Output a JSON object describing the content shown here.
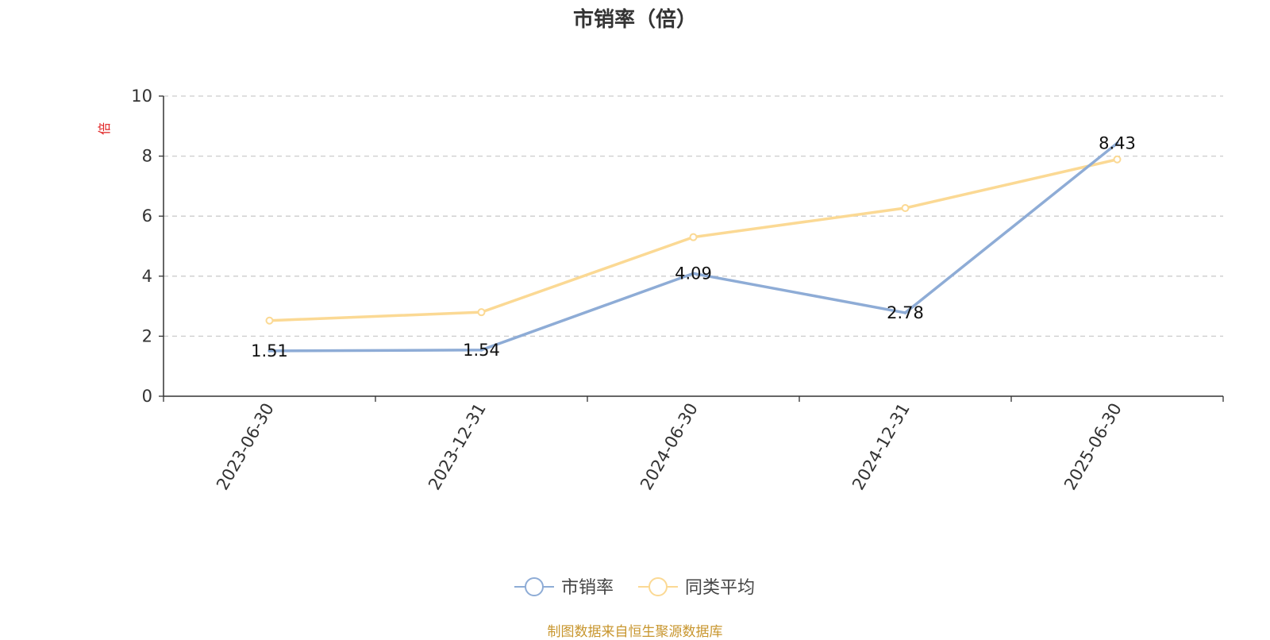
{
  "title": "市销率（倍）",
  "footer": "制图数据来自恒生聚源数据库",
  "chart_data": {
    "type": "line",
    "title": "市销率（倍）",
    "ylabel": "倍",
    "xlabel": "",
    "categories": [
      "2023-06-30",
      "2023-12-31",
      "2024-06-30",
      "2024-12-31",
      "2025-06-30"
    ],
    "ylim": [
      0,
      10
    ],
    "yticks": [
      0,
      2,
      4,
      6,
      8,
      10
    ],
    "grid": "horizontal dashed",
    "legend_position": "bottom-center",
    "series": [
      {
        "name": "市销率",
        "values": [
          1.51,
          1.54,
          4.09,
          2.78,
          8.43
        ],
        "labels": [
          "1.51",
          "1.54",
          "4.09",
          "2.78",
          "8.43"
        ],
        "color": "#8eacd6"
      },
      {
        "name": "同类平均",
        "values": [
          2.52,
          2.8,
          5.3,
          6.27,
          7.89
        ],
        "color": "#fbd994"
      }
    ]
  }
}
